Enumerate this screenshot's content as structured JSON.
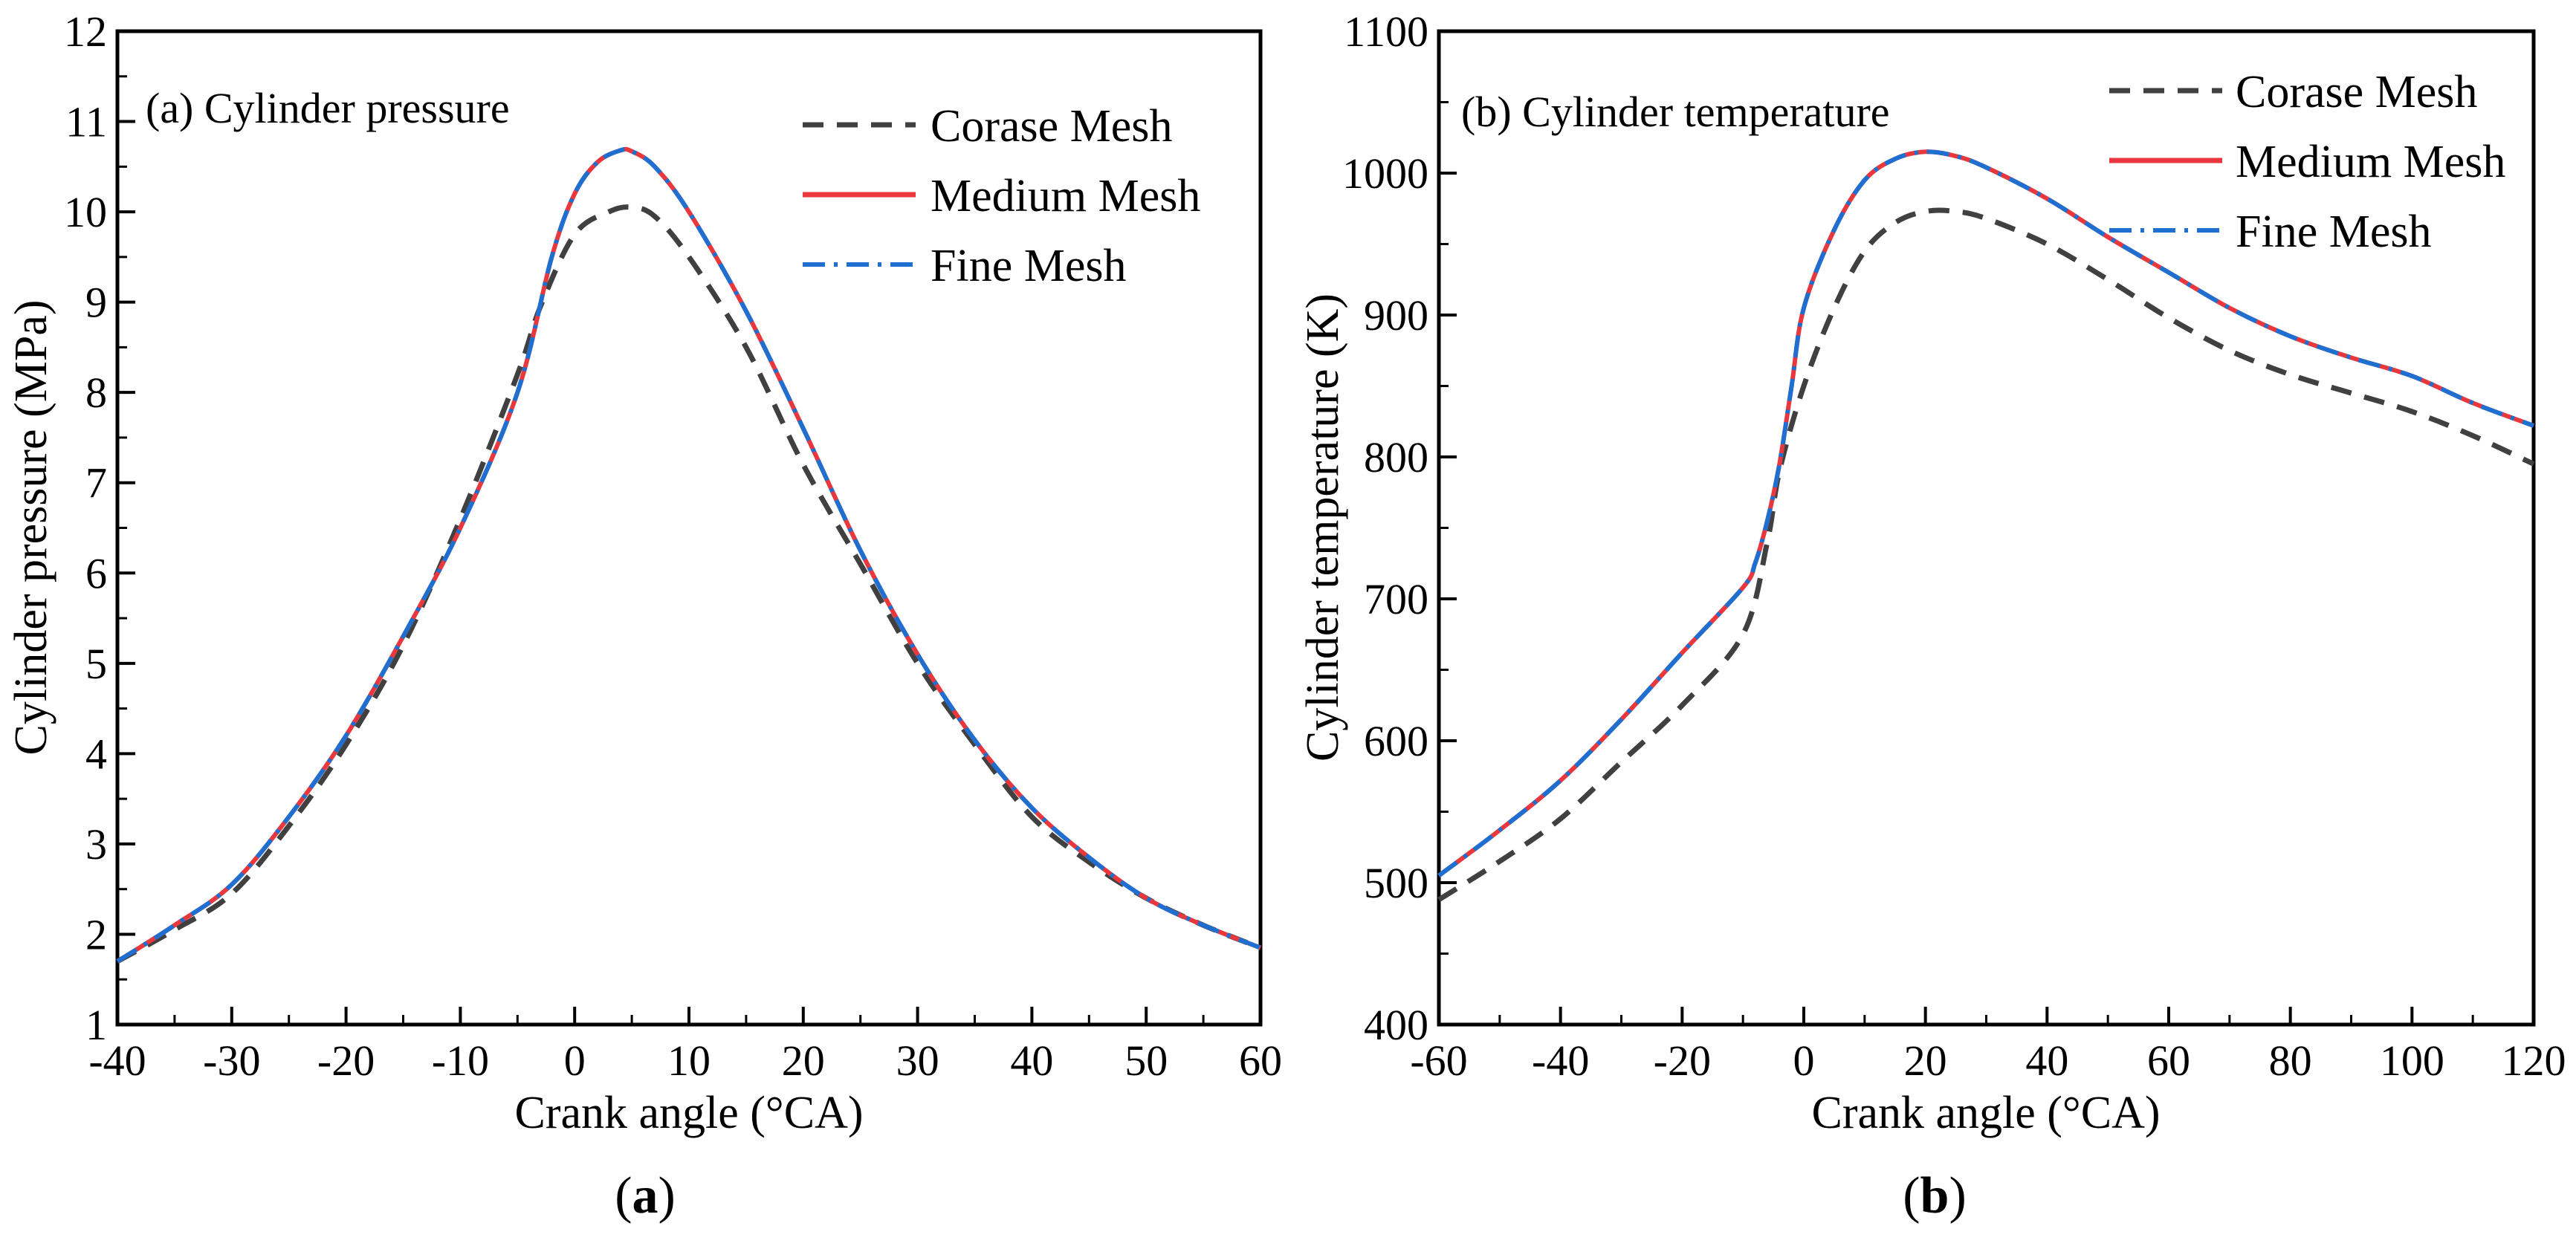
{
  "chart_data": [
    {
      "id": "a",
      "type": "line",
      "panel_label": "(a) Cylinder pressure",
      "caption": "(a)",
      "caption_letter": "a",
      "xlabel": "Crank angle (°CA)",
      "ylabel": "Cylinder pressure (MPa)",
      "xlim": [
        -40,
        60
      ],
      "ylim": [
        1,
        12
      ],
      "xticks": [
        -40,
        -30,
        -20,
        -10,
        0,
        10,
        20,
        30,
        40,
        50,
        60
      ],
      "yticks": [
        1,
        2,
        3,
        4,
        5,
        6,
        7,
        8,
        9,
        10,
        11,
        12
      ],
      "legend": "top-right",
      "series": [
        {
          "name": "Corase Mesh",
          "color": "#404040",
          "dash": "dashed",
          "x": [
            -40,
            -35,
            -30,
            -25,
            -20,
            -15,
            -10,
            -5,
            -3,
            0,
            3,
            5,
            7,
            10,
            15,
            20,
            25,
            30,
            35,
            40,
            45,
            50,
            55,
            60
          ],
          "y": [
            1.7,
            2.05,
            2.45,
            3.2,
            4.1,
            5.2,
            6.6,
            8.2,
            8.95,
            9.75,
            10.0,
            10.05,
            9.95,
            9.5,
            8.5,
            7.2,
            6.1,
            5.0,
            4.1,
            3.3,
            2.8,
            2.4,
            2.1,
            1.85
          ]
        },
        {
          "name": "Medium Mesh",
          "color": "#e8383d",
          "dash": "solid",
          "x": [
            -40,
            -35,
            -30,
            -25,
            -20,
            -15,
            -10,
            -5,
            -2,
            0,
            2,
            4,
            5,
            7,
            10,
            15,
            20,
            25,
            30,
            35,
            40,
            45,
            50,
            55,
            60
          ],
          "y": [
            1.7,
            2.1,
            2.55,
            3.3,
            4.2,
            5.3,
            6.5,
            8.0,
            9.5,
            10.2,
            10.55,
            10.68,
            10.67,
            10.5,
            10.0,
            8.9,
            7.6,
            6.25,
            5.1,
            4.15,
            3.4,
            2.85,
            2.4,
            2.1,
            1.85
          ]
        },
        {
          "name": "Fine Mesh",
          "color": "#1f6fd1",
          "dash": "dashdot",
          "x": [
            -40,
            -35,
            -30,
            -25,
            -20,
            -15,
            -10,
            -5,
            -2,
            0,
            2,
            4,
            5,
            7,
            10,
            15,
            20,
            25,
            30,
            35,
            40,
            45,
            50,
            55,
            60
          ],
          "y": [
            1.7,
            2.1,
            2.55,
            3.3,
            4.2,
            5.3,
            6.5,
            8.0,
            9.5,
            10.2,
            10.55,
            10.68,
            10.67,
            10.5,
            10.0,
            8.9,
            7.6,
            6.25,
            5.1,
            4.15,
            3.4,
            2.85,
            2.4,
            2.1,
            1.85
          ]
        }
      ]
    },
    {
      "id": "b",
      "type": "line",
      "panel_label": "(b) Cylinder temperature",
      "caption": "(b)",
      "caption_letter": "b",
      "xlabel": "Crank angle (°CA)",
      "ylabel": "Cylinder temperature (K)",
      "xlim": [
        -60,
        120
      ],
      "ylim": [
        400,
        1100
      ],
      "xticks": [
        -60,
        -40,
        -20,
        0,
        20,
        40,
        60,
        80,
        100,
        120
      ],
      "yticks": [
        400,
        500,
        600,
        700,
        800,
        900,
        1000,
        1100
      ],
      "legend": "top-right",
      "series": [
        {
          "name": "Corase Mesh",
          "color": "#404040",
          "dash": "dashed",
          "x": [
            -60,
            -50,
            -40,
            -30,
            -20,
            -10,
            -6,
            -4,
            0,
            5,
            10,
            15,
            20,
            25,
            30,
            40,
            50,
            60,
            70,
            80,
            90,
            100,
            110,
            120
          ],
          "y": [
            488,
            515,
            545,
            585,
            625,
            675,
            740,
            790,
            850,
            905,
            945,
            965,
            973,
            973,
            968,
            950,
            925,
            898,
            875,
            858,
            845,
            832,
            815,
            795
          ]
        },
        {
          "name": "Medium Mesh",
          "color": "#e8383d",
          "dash": "solid",
          "x": [
            -60,
            -50,
            -40,
            -30,
            -20,
            -10,
            -8,
            -6,
            -4,
            -2,
            0,
            5,
            10,
            15,
            20,
            25,
            30,
            40,
            50,
            60,
            70,
            80,
            90,
            100,
            110,
            120
          ],
          "y": [
            505,
            537,
            572,
            615,
            662,
            708,
            725,
            755,
            795,
            850,
            905,
            960,
            995,
            1010,
            1015,
            1012,
            1004,
            982,
            955,
            930,
            905,
            885,
            870,
            857,
            838,
            822
          ]
        },
        {
          "name": "Fine Mesh",
          "color": "#1f6fd1",
          "dash": "dashdot",
          "x": [
            -60,
            -50,
            -40,
            -30,
            -20,
            -10,
            -8,
            -6,
            -4,
            -2,
            0,
            5,
            10,
            15,
            20,
            25,
            30,
            40,
            50,
            60,
            70,
            80,
            90,
            100,
            110,
            120
          ],
          "y": [
            505,
            537,
            572,
            615,
            662,
            708,
            725,
            755,
            795,
            850,
            905,
            960,
            995,
            1010,
            1015,
            1012,
            1004,
            982,
            955,
            930,
            905,
            885,
            870,
            857,
            838,
            822
          ]
        }
      ]
    }
  ]
}
